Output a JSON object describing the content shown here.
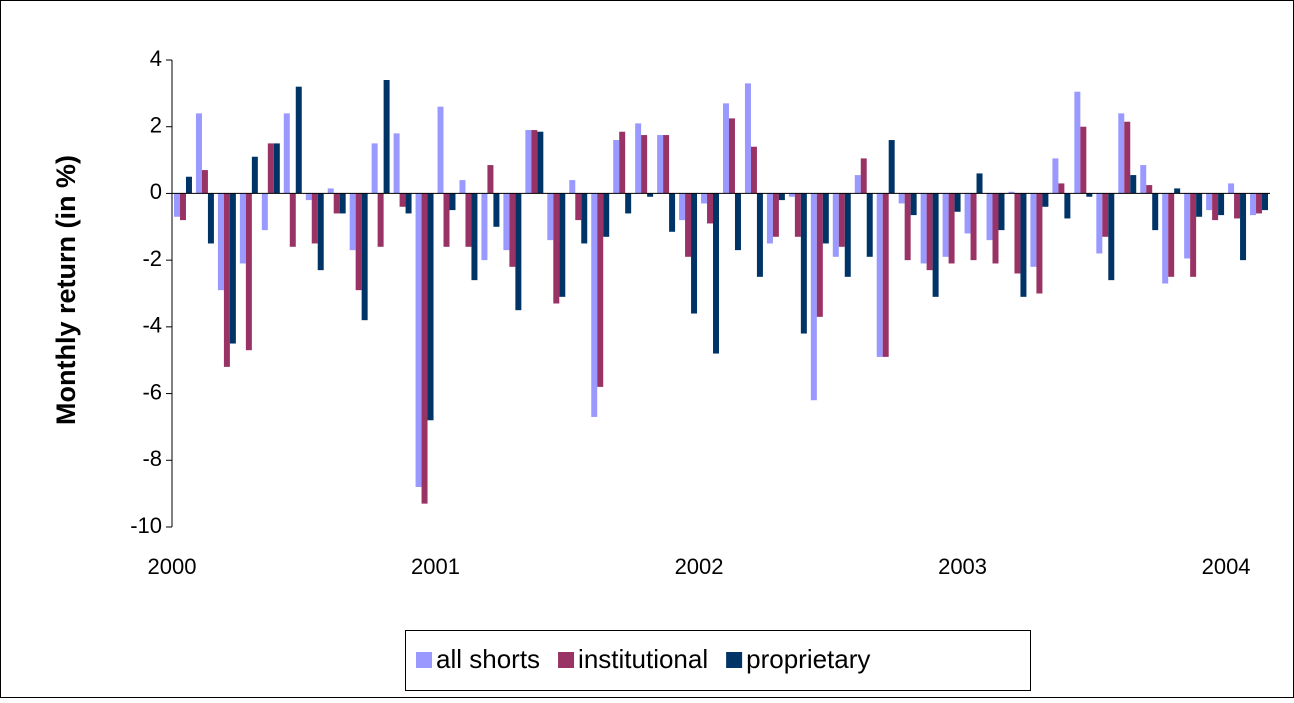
{
  "chart_data": {
    "type": "bar",
    "y_label": "Monthly return (in %)",
    "categories": [
      "2000",
      null,
      null,
      null,
      null,
      null,
      null,
      null,
      null,
      null,
      null,
      null,
      "2001",
      null,
      null,
      null,
      null,
      null,
      null,
      null,
      null,
      null,
      null,
      null,
      "2002",
      null,
      null,
      null,
      null,
      null,
      null,
      null,
      null,
      null,
      null,
      null,
      "2003",
      null,
      null,
      null,
      null,
      null,
      null,
      null,
      null,
      null,
      null,
      null,
      "2004",
      null
    ],
    "series": [
      {
        "name": "all shorts",
        "color": "#9999ff",
        "values": [
          -0.7,
          2.4,
          -2.9,
          -2.1,
          -1.1,
          2.4,
          -0.2,
          0.15,
          -1.7,
          1.5,
          1.8,
          -8.8,
          2.6,
          0.4,
          -2.0,
          -1.7,
          1.9,
          -1.4,
          0.4,
          -6.7,
          1.6,
          2.1,
          1.75,
          -0.8,
          -0.3,
          2.7,
          3.3,
          -1.5,
          -0.1,
          -6.2,
          -1.9,
          0.55,
          -4.9,
          -0.3,
          -2.1,
          -1.9,
          -1.2,
          -1.4,
          0.05,
          -2.2,
          1.05,
          3.05,
          -1.8,
          2.4,
          0.85,
          -2.7,
          -1.95,
          -0.5,
          0.3,
          -0.65
        ]
      },
      {
        "name": "institutional",
        "color": "#993366",
        "values": [
          -0.8,
          0.7,
          -5.2,
          -4.7,
          1.5,
          -1.6,
          -1.5,
          -0.6,
          -2.9,
          -1.6,
          -0.4,
          -9.3,
          -1.6,
          -1.6,
          0.85,
          -2.2,
          1.9,
          -3.3,
          -0.8,
          -5.8,
          1.85,
          1.75,
          1.75,
          -1.9,
          -0.9,
          2.25,
          1.4,
          -1.3,
          -1.3,
          -3.7,
          -1.6,
          1.05,
          -4.9,
          -2.0,
          -2.3,
          -2.1,
          -2.0,
          -2.1,
          -2.4,
          -3.0,
          0.3,
          2.0,
          -1.3,
          2.15,
          0.25,
          -2.5,
          -2.5,
          -0.8,
          -0.75,
          -0.6
        ]
      },
      {
        "name": "proprietary",
        "color": "#003366",
        "values": [
          0.5,
          -1.5,
          -4.5,
          1.1,
          1.5,
          3.2,
          -2.3,
          -0.6,
          -3.8,
          3.4,
          -0.6,
          -6.8,
          -0.5,
          -2.6,
          -1.0,
          -3.5,
          1.85,
          -3.1,
          -1.5,
          -1.3,
          -0.6,
          -0.1,
          -1.15,
          -3.6,
          -4.8,
          -1.7,
          -2.5,
          -0.2,
          -4.2,
          -1.5,
          -2.5,
          -1.9,
          1.6,
          -0.65,
          -3.1,
          -0.55,
          0.6,
          -1.1,
          -3.1,
          -0.4,
          -0.75,
          -0.1,
          -2.6,
          0.55,
          -1.1,
          0.15,
          -0.7,
          -0.65,
          -2.0,
          -0.5
        ]
      }
    ],
    "ylim": [
      -10,
      4
    ],
    "yticks": [
      -10,
      -8,
      -6,
      -4,
      -2,
      0,
      2,
      4
    ],
    "legend": "bottom"
  }
}
